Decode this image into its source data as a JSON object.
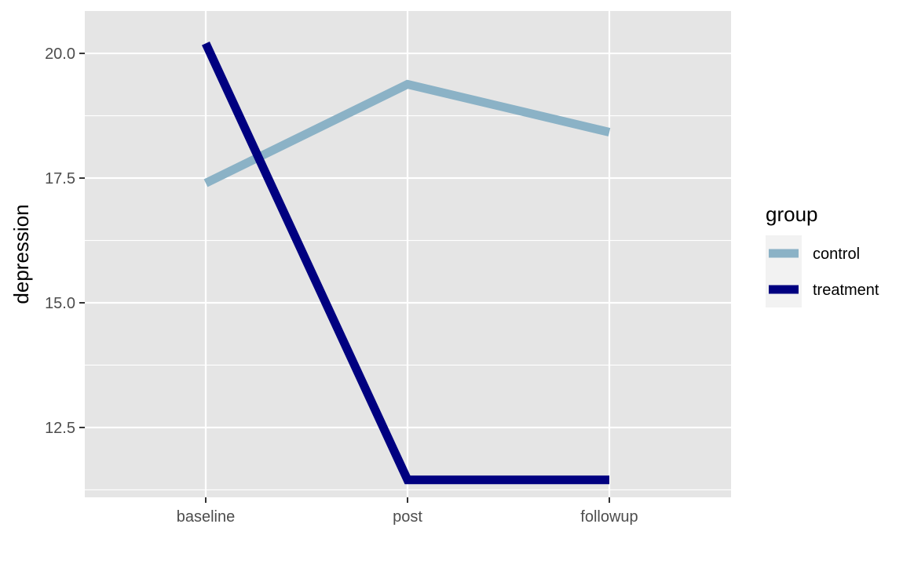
{
  "chart_data": {
    "type": "line",
    "title": "",
    "xlabel": "",
    "ylabel": "depression",
    "categories": [
      "baseline",
      "post",
      "followup"
    ],
    "ylim": [
      11.1,
      20.85
    ],
    "yticks": [
      12.5,
      15.0,
      17.5,
      20.0
    ],
    "ytick_labels": [
      "12.5",
      "15.0",
      "17.5",
      "20.0"
    ],
    "grid": true,
    "legend": {
      "title": "group",
      "position": "right"
    },
    "series": [
      {
        "name": "control",
        "color": "#8bb2c6",
        "values": [
          17.4,
          19.38,
          18.42
        ]
      },
      {
        "name": "treatment",
        "color": "#000080",
        "values": [
          20.2,
          11.45,
          11.45
        ]
      }
    ],
    "panel_background": "#e5e5e5",
    "grid_color": "#ffffff"
  }
}
